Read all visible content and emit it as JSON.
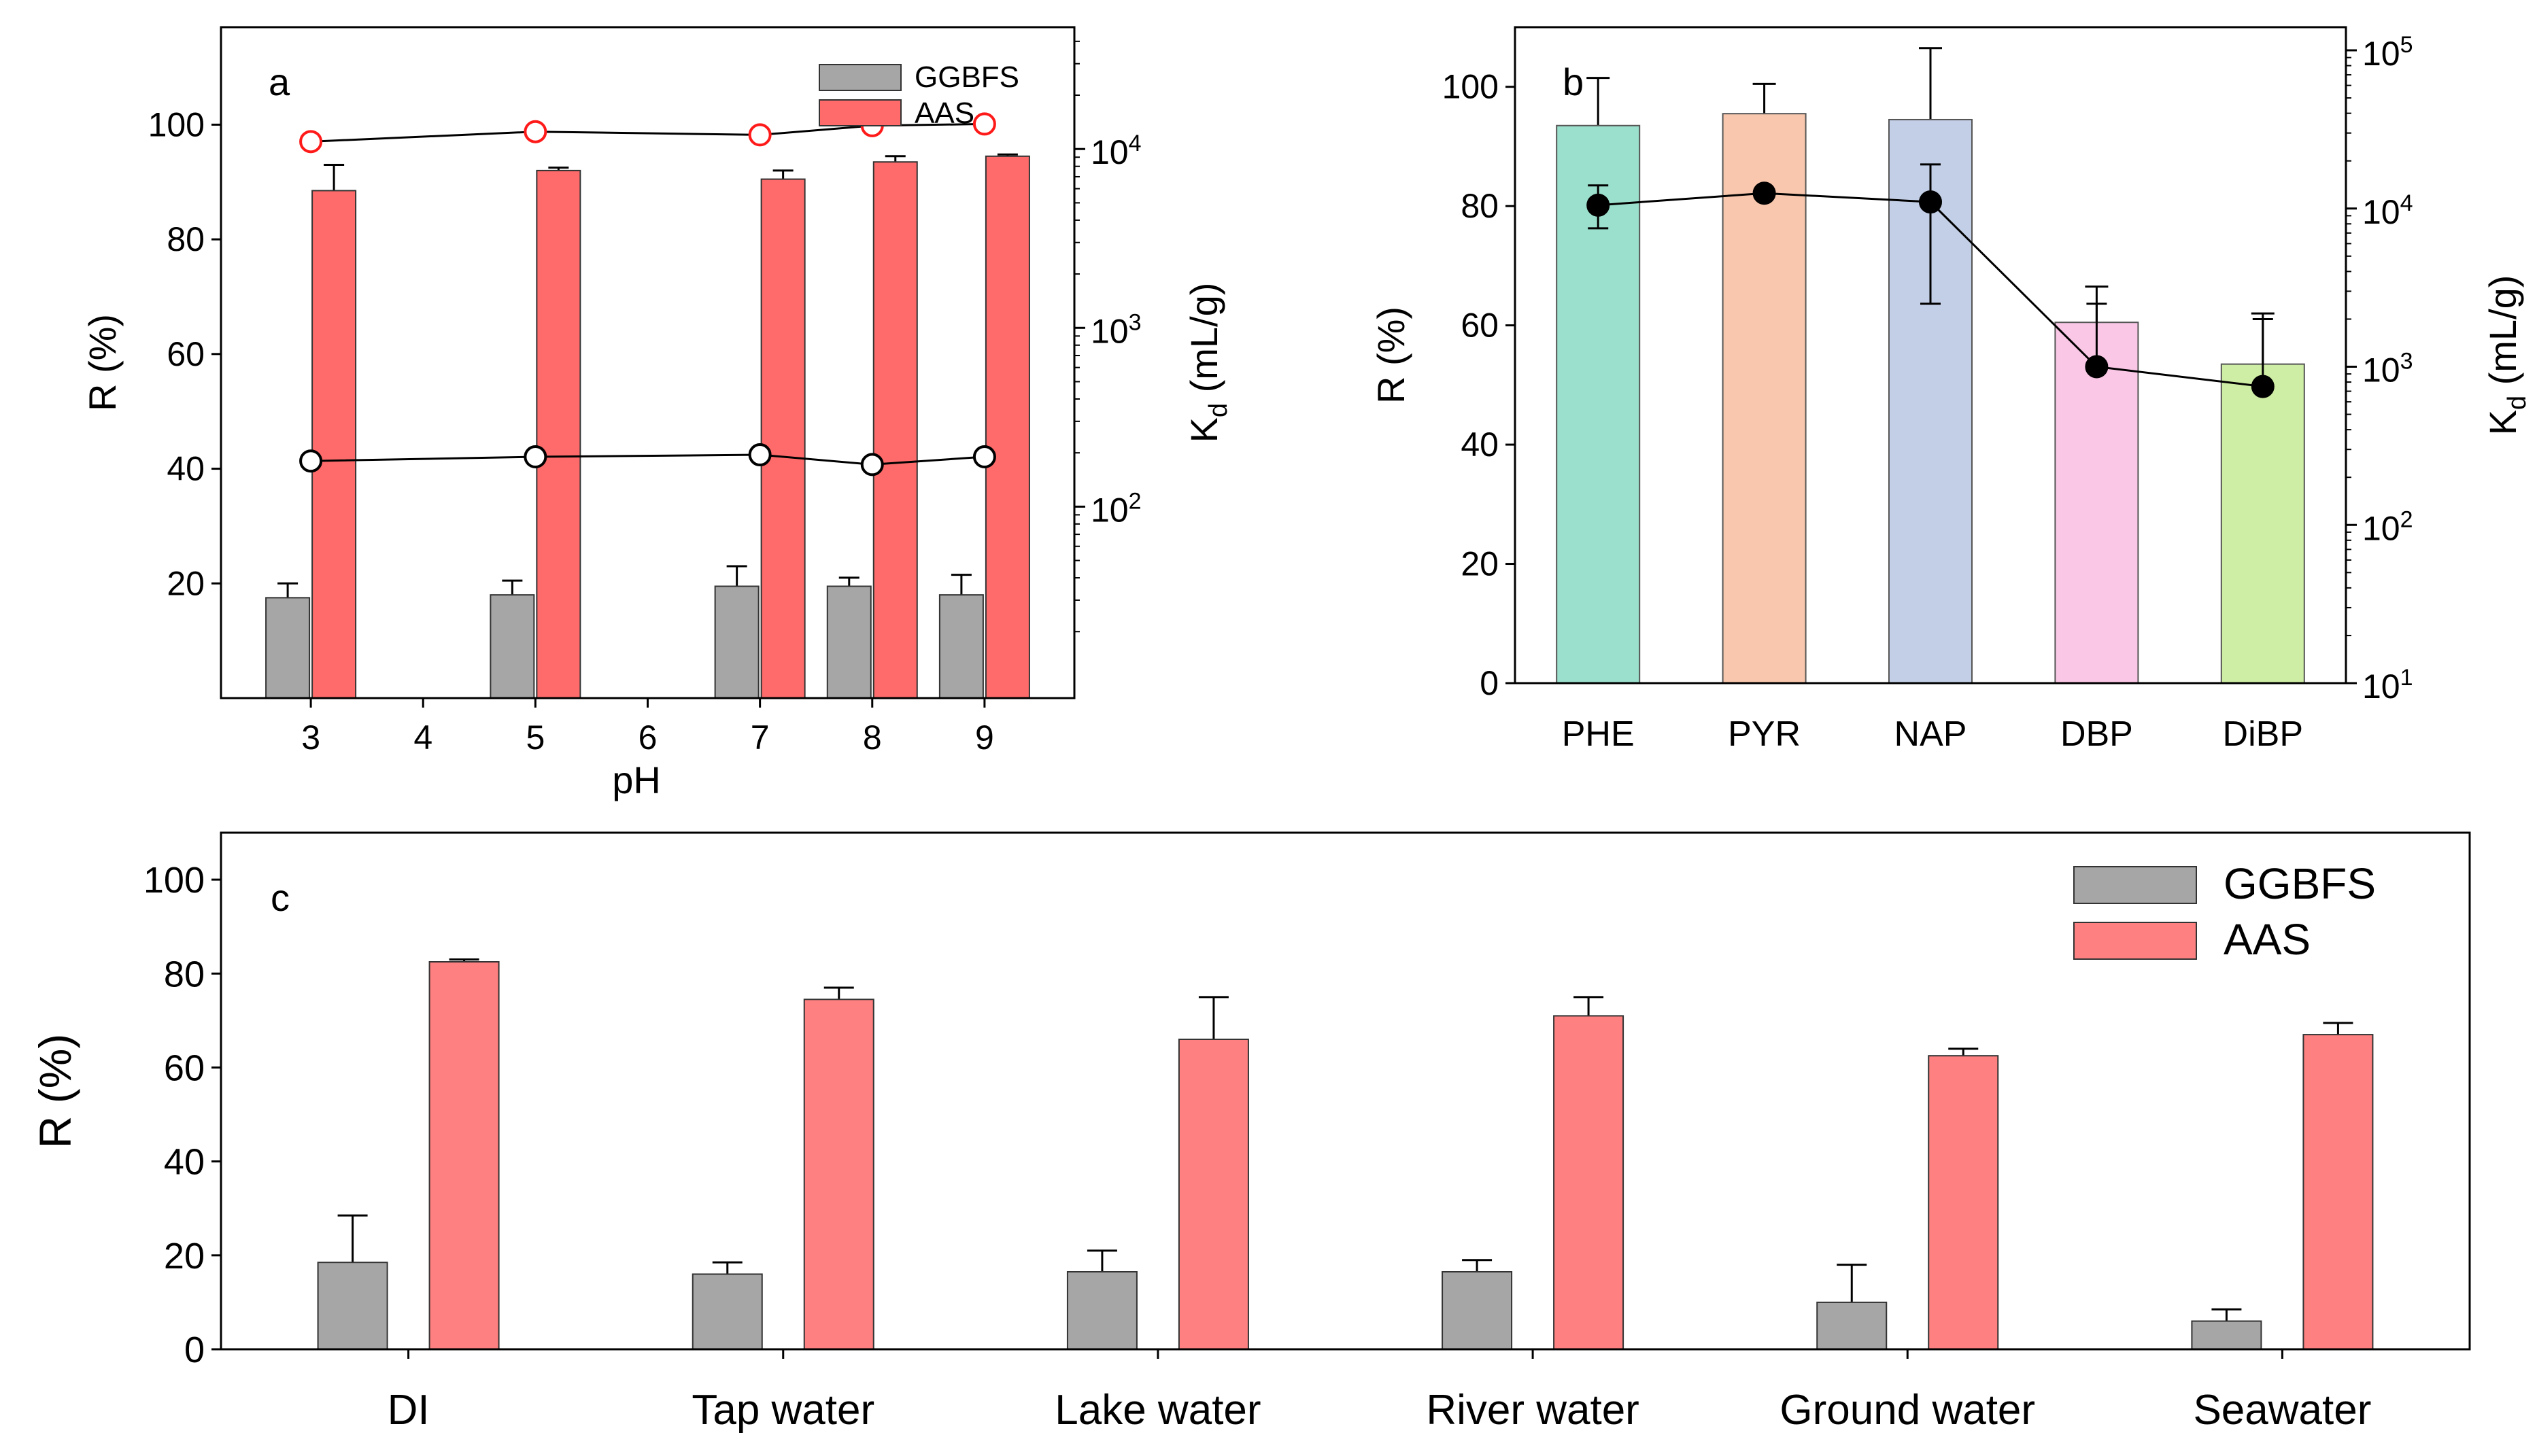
{
  "chart_data": [
    {
      "panel": "a",
      "type": "bar",
      "panel_label": "a",
      "xlabel": "pH",
      "ylabel": "R (%)",
      "y2label_main": "K",
      "y2label_sub": "d",
      "y2label_unit": " (mL/g)",
      "ylim": [
        0,
        117
      ],
      "yticks": [
        20,
        40,
        60,
        80,
        100
      ],
      "y2scale": "log",
      "y2lim": [
        8.5,
        48000
      ],
      "y2ticks": [
        {
          "value": 100,
          "exp": "2"
        },
        {
          "value": 1000,
          "exp": "3"
        },
        {
          "value": 10000,
          "exp": "4"
        }
      ],
      "xlim": [
        2.2,
        9.8
      ],
      "xticks": [
        3,
        4,
        5,
        6,
        7,
        8,
        9
      ],
      "legend_position": "top-right",
      "colors": {
        "GGBFS": "#a6a6a6",
        "AAS": "#ff6b6b",
        "AAS_marker": "#ff1a1a"
      },
      "series": [
        {
          "name": "GGBFS",
          "x": [
            3,
            5,
            7,
            8,
            9
          ],
          "values": [
            17.5,
            18,
            19.5,
            19.5,
            18
          ],
          "errors": [
            2.5,
            2.5,
            3.5,
            1.5,
            3.5
          ]
        },
        {
          "name": "AAS",
          "x": [
            3,
            5,
            7,
            8,
            9
          ],
          "values": [
            88.5,
            92,
            90.5,
            93.5,
            94.5
          ],
          "errors": [
            4.5,
            0.5,
            1.5,
            1,
            0.3
          ]
        }
      ],
      "kd_series": [
        {
          "name": "GGBFS Kd",
          "x": [
            3,
            5,
            7,
            8,
            9
          ],
          "values": [
            180,
            190,
            195,
            172,
            190
          ]
        },
        {
          "name": "AAS Kd",
          "x": [
            3,
            5,
            7,
            8,
            9
          ],
          "values": [
            11000,
            12500,
            12000,
            13500,
            13800
          ]
        }
      ]
    },
    {
      "panel": "b",
      "type": "bar",
      "panel_label": "b",
      "xlabel": "",
      "ylabel": "R (%)",
      "y2label_main": "K",
      "y2label_sub": "d",
      "y2label_unit": " (mL/g)",
      "ylim": [
        0,
        110
      ],
      "yticks": [
        0,
        20,
        40,
        60,
        80,
        100
      ],
      "y2scale": "log",
      "y2lim": [
        10,
        140000
      ],
      "y2ticks": [
        {
          "value": 10,
          "exp": "1"
        },
        {
          "value": 100,
          "exp": "2"
        },
        {
          "value": 1000,
          "exp": "3"
        },
        {
          "value": 10000,
          "exp": "4"
        },
        {
          "value": 100000,
          "exp": "5"
        }
      ],
      "categories": [
        "PHE",
        "PYR",
        "NAP",
        "DBP",
        "DiBP"
      ],
      "colors": [
        "#9be0cc",
        "#f9c7ae",
        "#c3cfe6",
        "#fac8e6",
        "#cfeea5"
      ],
      "values": [
        93.5,
        95.5,
        94.5,
        60.5,
        53.5
      ],
      "errors": [
        8,
        5,
        12,
        6,
        8.5
      ],
      "kd_values": [
        10500,
        12500,
        11000,
        1000,
        750
      ],
      "kd_err_low": [
        7500,
        null,
        2500,
        null,
        null
      ],
      "kd_err_high": [
        14000,
        null,
        19000,
        2500,
        2000
      ]
    },
    {
      "panel": "c",
      "type": "bar",
      "panel_label": "c",
      "xlabel": "",
      "ylabel": "R (%)",
      "ylim": [
        0,
        110
      ],
      "yticks": [
        0,
        20,
        40,
        60,
        80,
        100
      ],
      "categories": [
        "DI",
        "Tap water",
        "Lake water",
        "River water",
        "Ground water",
        "Seawater"
      ],
      "legend_position": "top-right",
      "colors": {
        "GGBFS": "#a6a6a6",
        "AAS": "#ff8080"
      },
      "series": [
        {
          "name": "GGBFS",
          "values": [
            18.5,
            16,
            16.5,
            16.5,
            10,
            6
          ],
          "errors": [
            10,
            2.5,
            4.5,
            2.5,
            8,
            2.5
          ]
        },
        {
          "name": "AAS",
          "values": [
            82.5,
            74.5,
            66,
            71,
            62.5,
            67
          ],
          "errors": [
            0.5,
            2.5,
            9,
            4,
            1.5,
            2.5
          ]
        }
      ]
    }
  ]
}
